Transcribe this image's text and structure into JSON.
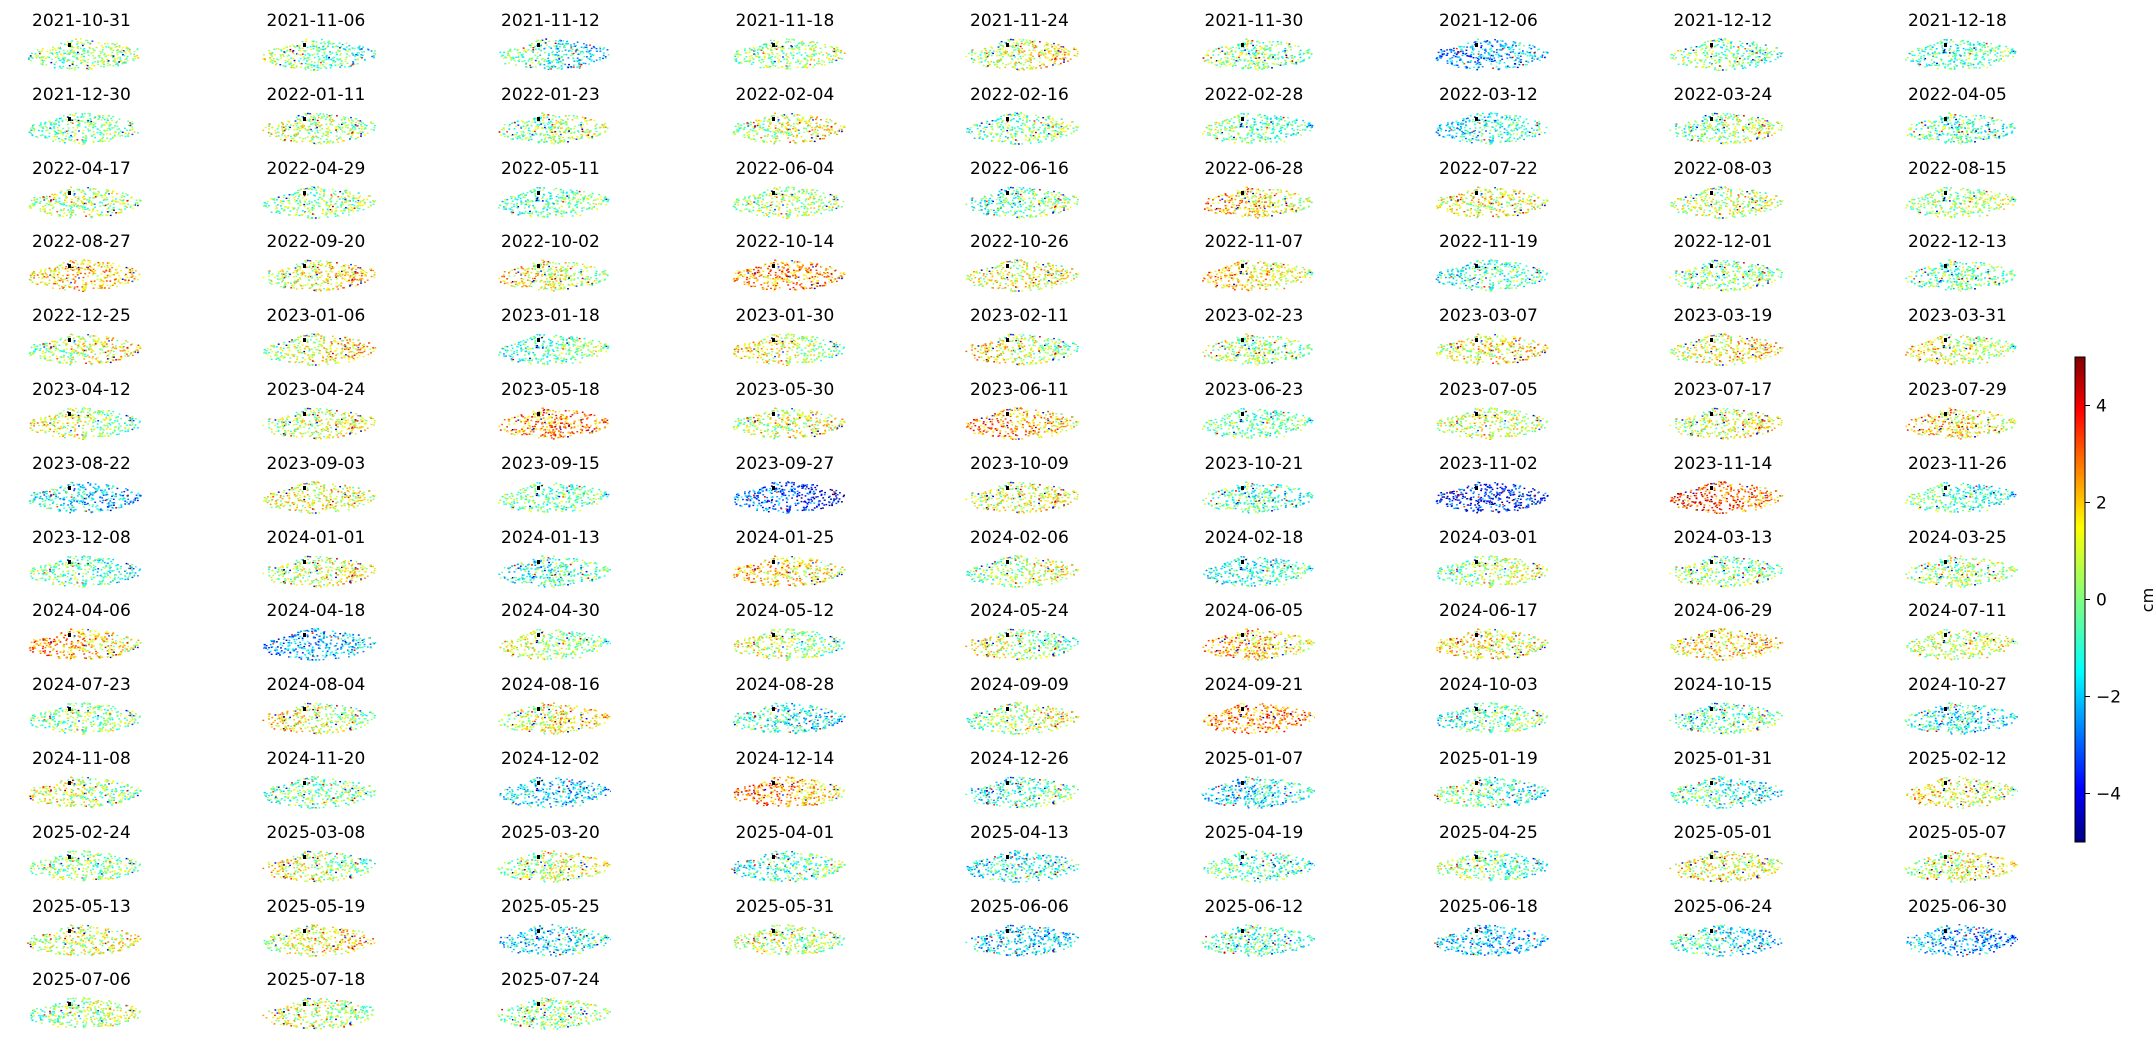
{
  "chart_data": {
    "type": "heatmap",
    "colormap": "jet",
    "colorbar": {
      "label": "cm",
      "range": [
        -5,
        5
      ],
      "ticks": [
        4,
        2,
        0,
        -2,
        -4
      ],
      "tick_labels": [
        "4",
        "2",
        "0",
        "−2",
        "−4"
      ]
    },
    "dates": [
      "2021-10-31",
      "2021-11-06",
      "2021-11-12",
      "2021-11-18",
      "2021-11-24",
      "2021-11-30",
      "2021-12-06",
      "2021-12-12",
      "2021-12-18",
      "2021-12-30",
      "2022-01-11",
      "2022-01-23",
      "2022-02-04",
      "2022-02-16",
      "2022-02-28",
      "2022-03-12",
      "2022-03-24",
      "2022-04-05",
      "2022-04-17",
      "2022-04-29",
      "2022-05-11",
      "2022-06-04",
      "2022-06-16",
      "2022-06-28",
      "2022-07-22",
      "2022-08-03",
      "2022-08-15",
      "2022-08-27",
      "2022-09-20",
      "2022-10-02",
      "2022-10-14",
      "2022-10-26",
      "2022-11-07",
      "2022-11-19",
      "2022-12-01",
      "2022-12-13",
      "2022-12-25",
      "2023-01-06",
      "2023-01-18",
      "2023-01-30",
      "2023-02-11",
      "2023-02-23",
      "2023-03-07",
      "2023-03-19",
      "2023-03-31",
      "2023-04-12",
      "2023-04-24",
      "2023-05-18",
      "2023-05-30",
      "2023-06-11",
      "2023-06-23",
      "2023-07-05",
      "2023-07-17",
      "2023-07-29",
      "2023-08-22",
      "2023-09-03",
      "2023-09-15",
      "2023-09-27",
      "2023-10-09",
      "2023-10-21",
      "2023-11-02",
      "2023-11-14",
      "2023-11-26",
      "2023-12-08",
      "2024-01-01",
      "2024-01-13",
      "2024-01-25",
      "2024-02-06",
      "2024-02-18",
      "2024-03-01",
      "2024-03-13",
      "2024-03-25",
      "2024-04-06",
      "2024-04-18",
      "2024-04-30",
      "2024-05-12",
      "2024-05-24",
      "2024-06-05",
      "2024-06-17",
      "2024-06-29",
      "2024-07-11",
      "2024-07-23",
      "2024-08-04",
      "2024-08-16",
      "2024-08-28",
      "2024-09-09",
      "2024-09-21",
      "2024-10-03",
      "2024-10-15",
      "2024-10-27",
      "2024-11-08",
      "2024-11-20",
      "2024-12-02",
      "2024-12-14",
      "2024-12-26",
      "2025-01-07",
      "2025-01-19",
      "2025-01-31",
      "2025-02-12",
      "2025-02-24",
      "2025-03-08",
      "2025-03-20",
      "2025-04-01",
      "2025-04-13",
      "2025-04-19",
      "2025-04-25",
      "2025-05-01",
      "2025-05-07",
      "2025-05-13",
      "2025-05-19",
      "2025-05-25",
      "2025-05-31",
      "2025-06-06",
      "2025-06-12",
      "2025-06-18",
      "2025-06-24",
      "2025-06-30",
      "2025-07-06",
      "2025-07-18",
      "2025-07-24"
    ],
    "mean_displacement_cm": [
      0.2,
      -0.2,
      -0.8,
      0.3,
      1.0,
      0.1,
      -2.0,
      -0.2,
      -0.5,
      0.0,
      0.5,
      0.3,
      0.8,
      -0.1,
      -0.3,
      -0.9,
      0.3,
      -0.4,
      0.4,
      0.1,
      -0.3,
      0.5,
      -0.2,
      1.5,
      1.0,
      0.6,
      0.4,
      1.8,
      1.2,
      1.0,
      2.2,
      1.0,
      1.5,
      -0.6,
      0.1,
      -0.2,
      0.8,
      1.0,
      -0.3,
      0.9,
      0.8,
      0.4,
      1.2,
      1.2,
      0.9,
      0.6,
      0.8,
      2.4,
      0.8,
      2.0,
      -0.2,
      0.8,
      0.9,
      1.5,
      -1.5,
      1.0,
      -0.2,
      -3.0,
      1.0,
      -0.5,
      -3.5,
      2.8,
      -0.5,
      -0.4,
      0.8,
      -0.6,
      1.5,
      0.4,
      -0.8,
      0.5,
      0.1,
      0.4,
      1.8,
      -2.0,
      0.5,
      0.5,
      0.4,
      1.8,
      1.2,
      1.5,
      0.8,
      0.1,
      0.8,
      1.2,
      -1.0,
      0.5,
      2.6,
      -0.3,
      -0.3,
      -1.0,
      0.5,
      -0.2,
      -1.5,
      2.2,
      -0.6,
      -1.2,
      -0.5,
      -0.8,
      1.2,
      0.2,
      0.6,
      0.8,
      -0.6,
      -1.0,
      -0.4,
      -0.1,
      1.0,
      1.0,
      0.8,
      1.2,
      -1.2,
      0.6,
      -1.5,
      -0.5,
      -1.8,
      -1.2,
      -2.0,
      0.4,
      0.6,
      0.2
    ]
  }
}
